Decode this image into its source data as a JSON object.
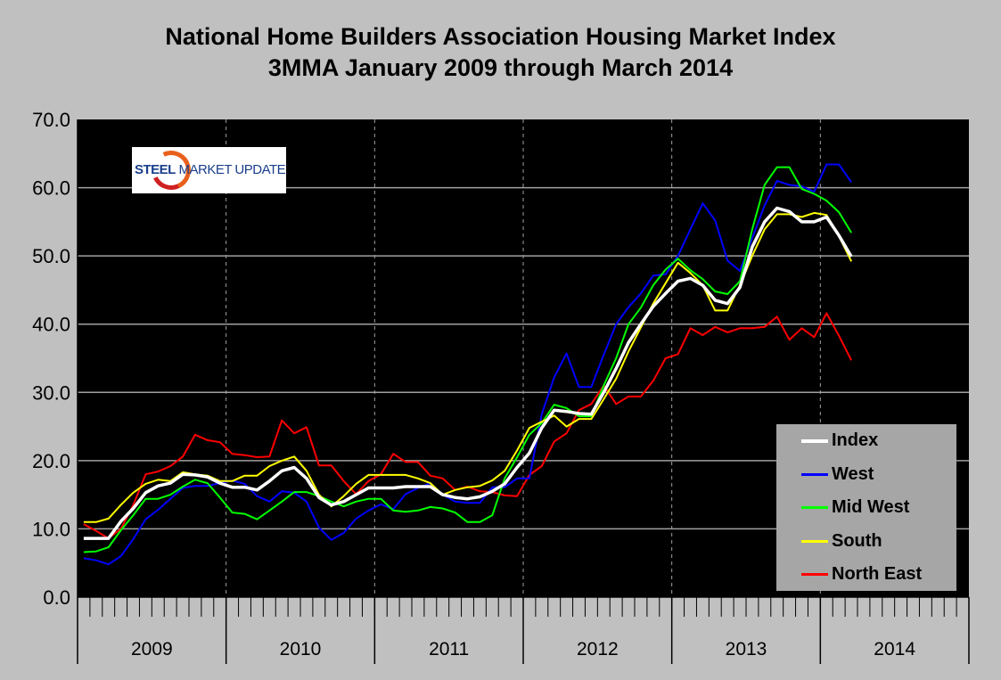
{
  "chart_data": {
    "type": "line",
    "title": "National Home Builders Association Housing Market Index",
    "subtitle": "3MMA January 2009 through March 2014",
    "xlabel": "",
    "ylabel": "",
    "ylim": [
      0,
      70
    ],
    "yticks": [
      "0.0",
      "10.0",
      "20.0",
      "30.0",
      "40.0",
      "50.0",
      "60.0",
      "70.0"
    ],
    "x_start": "2009-01",
    "x_end": "2014-03",
    "x_frequency": "monthly",
    "year_labels": [
      "2009",
      "2010",
      "2011",
      "2012",
      "2013",
      "2014"
    ],
    "grid": {
      "horizontal": true,
      "vertical_year_dashed": true
    },
    "legend_placement": "bottom-right",
    "background": "#000000",
    "series": [
      {
        "name": "Index",
        "color": "#ffffff",
        "values": [
          8.6,
          8.6,
          8.6,
          11.1,
          13,
          15.3,
          16.3,
          16.7,
          18,
          17.9,
          17.6,
          16.7,
          16.1,
          16.1,
          15.7,
          17,
          18.5,
          19,
          17.4,
          14.6,
          13.5,
          14,
          15,
          16,
          16,
          16,
          16.2,
          16.2,
          16.2,
          15,
          14.6,
          14.4,
          14.7,
          15.5,
          16.6,
          19,
          21.1,
          24.8,
          27.4,
          27.2,
          26.9,
          26.8,
          30,
          33.5,
          37.3,
          40,
          42.6,
          44.5,
          46.3,
          46.7,
          45.7,
          43.5,
          43,
          45.4,
          51.3,
          55,
          57,
          56.5,
          55,
          55,
          55.7,
          53,
          49.9
        ]
      },
      {
        "name": "West",
        "color": "#0000ff",
        "values": [
          5.7,
          5.4,
          4.8,
          6,
          8.5,
          11.4,
          12.8,
          14.4,
          16,
          16.3,
          16.3,
          16.7,
          17.1,
          16.6,
          14.8,
          14,
          15.5,
          15.3,
          14,
          10.2,
          8.4,
          9.4,
          11.5,
          12.7,
          13.6,
          12.9,
          15.1,
          16,
          16.7,
          15,
          14,
          13.8,
          13.8,
          16.1,
          16.1,
          17.4,
          17.4,
          26.8,
          32.2,
          35.7,
          30.8,
          30.8,
          35.5,
          40,
          42.5,
          44.5,
          47.1,
          47.3,
          50,
          53.9,
          57.7,
          55.2,
          49.3,
          47.8,
          52.6,
          57.4,
          61,
          60.4,
          60.2,
          59.4,
          63.4,
          63.4,
          60.8
        ]
      },
      {
        "name": "Mid West",
        "color": "#00ff00",
        "values": [
          6.6,
          6.7,
          7.3,
          9.8,
          12,
          14.4,
          14.4,
          15,
          16.2,
          17.2,
          16.7,
          14.6,
          12.4,
          12.2,
          11.4,
          12.7,
          14,
          15.4,
          15.4,
          14.8,
          14,
          13.3,
          14,
          14.4,
          14.4,
          12.7,
          12.5,
          12.7,
          13.2,
          13,
          12.4,
          11,
          11,
          12,
          17.4,
          20.5,
          23.8,
          25.5,
          28.2,
          27.7,
          26.5,
          26.5,
          31,
          35,
          40,
          42.4,
          45.7,
          48,
          49.6,
          47.9,
          46.6,
          44.8,
          44.4,
          46.3,
          53.9,
          60.4,
          63,
          63,
          59.8,
          59.1,
          58.1,
          56.4,
          53.4
        ]
      },
      {
        "name": "South",
        "color": "#ffff00",
        "values": [
          11,
          11,
          11.5,
          13.5,
          15.3,
          16.6,
          17.2,
          17,
          18.3,
          18,
          17.8,
          17,
          17,
          17.8,
          17.8,
          19.2,
          20,
          20.6,
          18.5,
          15,
          13.3,
          14.8,
          16.6,
          17.9,
          17.9,
          17.9,
          17.9,
          17.4,
          16.7,
          15,
          15.7,
          16.1,
          16.3,
          17.1,
          18.5,
          21.5,
          24.8,
          25.7,
          26.6,
          25,
          26.1,
          26.1,
          29,
          32,
          36,
          39.5,
          43,
          46,
          49,
          47.5,
          45.7,
          42,
          42,
          45.7,
          50,
          53.9,
          56.1,
          56.1,
          55.7,
          56.3,
          56,
          52.9,
          49.2
        ]
      },
      {
        "name": "North East",
        "color": "#ff0000",
        "values": [
          10.7,
          9.7,
          8.6,
          10,
          13.5,
          18,
          18.4,
          19.2,
          20.6,
          23.8,
          23,
          22.7,
          21,
          20.8,
          20.5,
          20.6,
          25.9,
          24,
          24.9,
          19.3,
          19.3,
          17,
          15.1,
          17,
          18,
          21,
          19.8,
          19.8,
          17.8,
          17.4,
          15.7,
          16.2,
          15.5,
          15.4,
          14.9,
          14.8,
          17.9,
          19.2,
          22.8,
          24,
          27.4,
          28.3,
          31,
          28.3,
          29.4,
          29.4,
          31.7,
          35,
          35.6,
          39.4,
          38.4,
          39.6,
          38.8,
          39.4,
          39.4,
          39.6,
          41.1,
          37.7,
          39.4,
          38.1,
          41.6,
          38.3,
          34.7
        ]
      }
    ]
  },
  "logo": {
    "text_bold": "STEEL",
    "text_regular": " MARKET UPDATE"
  }
}
